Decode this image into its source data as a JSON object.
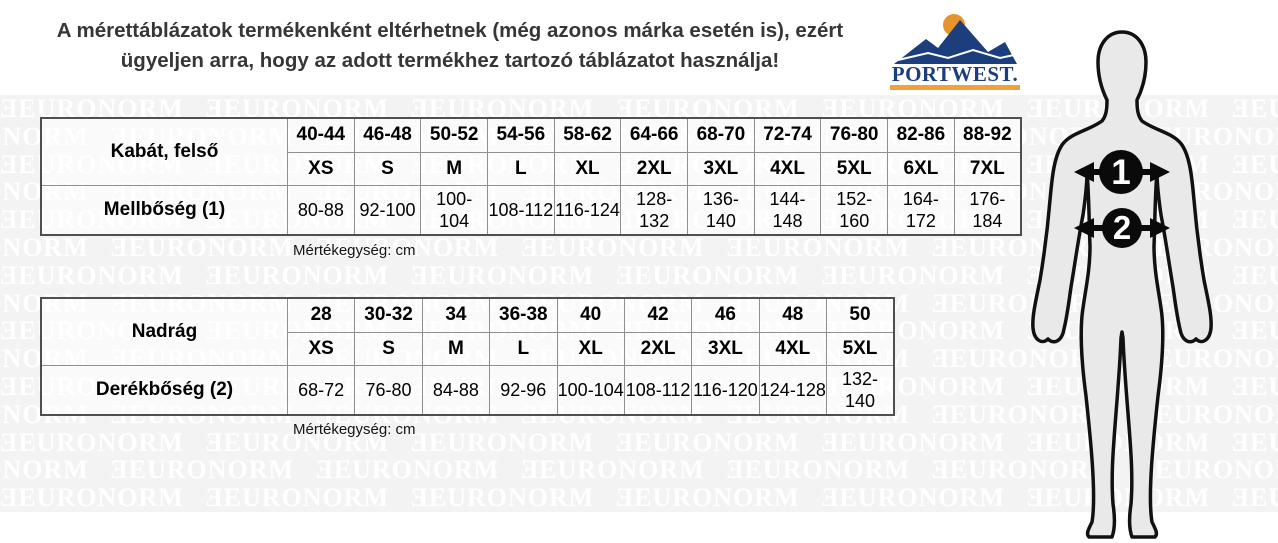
{
  "header": {
    "line1": "A mérettáblázatok termékenként eltérhetnek (még azonos márka esetén is), ezért",
    "line2": "ügyeljen arra, hogy az adott termékhez tartozó táblázatot használja!"
  },
  "logo": {
    "brand": "PORTWEST.",
    "colors": {
      "blue": "#1c3e7c",
      "light_blue": "#2a55a8",
      "orange": "#efa13a",
      "sun_orange": "#e8932c"
    }
  },
  "watermark": {
    "text": "ƎEURONORM",
    "rows": 15,
    "repeats_per_row": 9
  },
  "tables": [
    {
      "row_header": "Kabát, felső",
      "sizes": [
        "40-44",
        "46-48",
        "50-52",
        "54-56",
        "58-62",
        "64-66",
        "68-70",
        "72-74",
        "76-80",
        "82-86",
        "88-92"
      ],
      "letter_sizes": [
        "XS",
        "S",
        "M",
        "L",
        "XL",
        "2XL",
        "3XL",
        "4XL",
        "5XL",
        "6XL",
        "7XL"
      ],
      "measure_label": "Mellbőség (1)",
      "measure_values": [
        "80-88",
        "92-100",
        "100-104",
        "108-112",
        "116-124",
        "128-132",
        "136-140",
        "144-148",
        "152-160",
        "164-172",
        "176-184"
      ],
      "unit_note": "Mértékegység: cm"
    },
    {
      "row_header": "Nadrág",
      "sizes": [
        "28",
        "30-32",
        "34",
        "36-38",
        "40",
        "42",
        "46",
        "48",
        "50"
      ],
      "letter_sizes": [
        "XS",
        "S",
        "M",
        "L",
        "XL",
        "2XL",
        "3XL",
        "4XL",
        "5XL"
      ],
      "measure_label": "Derékbőség (2)",
      "measure_values": [
        "68-72",
        "76-80",
        "84-88",
        "92-96",
        "100-104",
        "108-112",
        "116-120",
        "124-128",
        "132-140"
      ],
      "unit_note": "Mértékegység: cm"
    }
  ],
  "figure": {
    "marker1": "1",
    "marker2": "2",
    "body_fill": "#e9e9e9",
    "marker_color": "#0a0a0a"
  }
}
